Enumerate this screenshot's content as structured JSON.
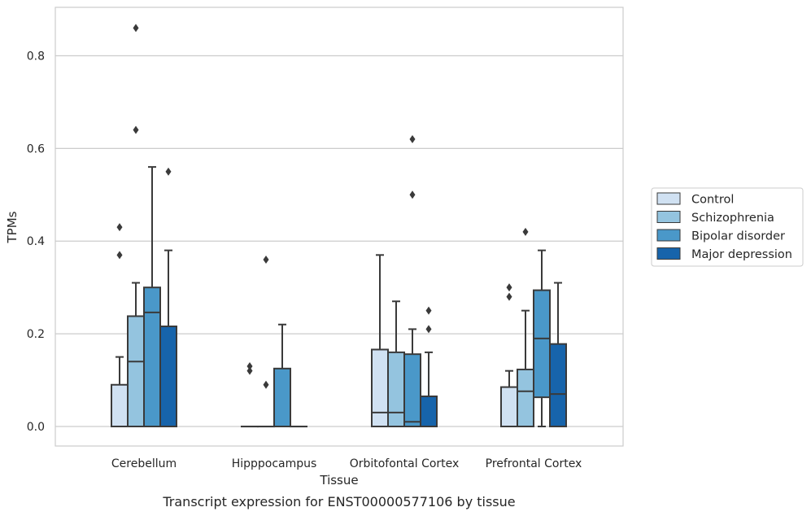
{
  "caption": "Transcript expression for ENST00000577106 by tissue",
  "chart_data": {
    "type": "boxplot",
    "xlabel": "Tissue",
    "ylabel": "TPMs",
    "ylim": [
      -0.042,
      0.905
    ],
    "yticks": [
      0.0,
      0.2,
      0.4,
      0.6,
      0.8
    ],
    "ytick_labels": [
      "0.0",
      "0.2",
      "0.4",
      "0.6",
      "0.8"
    ],
    "grid": "horizontal",
    "legend_position": "right",
    "categories": [
      "Cerebellum",
      "Hipppocampus",
      "Orbitofontal Cortex",
      "Prefrontal Cortex"
    ],
    "series": [
      {
        "name": "Control",
        "color": "#d0e1f2",
        "boxes": [
          {
            "q1": 0.0,
            "median": 0.0,
            "q3": 0.09,
            "whislo": 0.0,
            "whishi": 0.15,
            "fliers": [
              0.37,
              0.43
            ]
          },
          {
            "q1": 0.0,
            "median": 0.0,
            "q3": 0.0,
            "whislo": 0.0,
            "whishi": 0.0,
            "fliers": [
              0.12,
              0.13
            ]
          },
          {
            "q1": 0.0,
            "median": 0.03,
            "q3": 0.166,
            "whislo": 0.0,
            "whishi": 0.37,
            "fliers": []
          },
          {
            "q1": 0.0,
            "median": 0.0,
            "q3": 0.085,
            "whislo": 0.0,
            "whishi": 0.12,
            "fliers": [
              0.28,
              0.3
            ]
          }
        ]
      },
      {
        "name": "Schizophrenia",
        "color": "#94c4df",
        "boxes": [
          {
            "q1": 0.0,
            "median": 0.14,
            "q3": 0.238,
            "whislo": 0.0,
            "whishi": 0.31,
            "fliers": [
              0.64,
              0.86
            ]
          },
          {
            "q1": 0.0,
            "median": 0.0,
            "q3": 0.0,
            "whislo": 0.0,
            "whishi": 0.0,
            "fliers": [
              0.09,
              0.36
            ]
          },
          {
            "q1": 0.0,
            "median": 0.03,
            "q3": 0.16,
            "whislo": 0.0,
            "whishi": 0.27,
            "fliers": []
          },
          {
            "q1": 0.0,
            "median": 0.076,
            "q3": 0.123,
            "whislo": 0.0,
            "whishi": 0.25,
            "fliers": [
              0.42
            ]
          }
        ]
      },
      {
        "name": "Bipolar disorder",
        "color": "#4a98c9",
        "boxes": [
          {
            "q1": 0.0,
            "median": 0.246,
            "q3": 0.3,
            "whislo": 0.0,
            "whishi": 0.56,
            "fliers": []
          },
          {
            "q1": 0.0,
            "median": 0.0,
            "q3": 0.125,
            "whislo": 0.0,
            "whishi": 0.22,
            "fliers": []
          },
          {
            "q1": 0.0,
            "median": 0.01,
            "q3": 0.156,
            "whislo": 0.0,
            "whishi": 0.21,
            "fliers": [
              0.5,
              0.62
            ]
          },
          {
            "q1": 0.063,
            "median": 0.19,
            "q3": 0.294,
            "whislo": 0.0,
            "whishi": 0.38,
            "fliers": []
          }
        ]
      },
      {
        "name": "Major depression",
        "color": "#1764ab",
        "boxes": [
          {
            "q1": 0.0,
            "median": 0.216,
            "q3": 0.216,
            "whislo": 0.0,
            "whishi": 0.38,
            "fliers": [
              0.55
            ]
          },
          {
            "q1": 0.0,
            "median": 0.0,
            "q3": 0.0,
            "whislo": 0.0,
            "whishi": 0.0,
            "fliers": []
          },
          {
            "q1": 0.0,
            "median": 0.0,
            "q3": 0.065,
            "whislo": 0.0,
            "whishi": 0.16,
            "fliers": [
              0.21,
              0.25
            ]
          },
          {
            "q1": 0.0,
            "median": 0.07,
            "q3": 0.178,
            "whislo": 0.0,
            "whishi": 0.31,
            "fliers": []
          }
        ]
      }
    ]
  }
}
